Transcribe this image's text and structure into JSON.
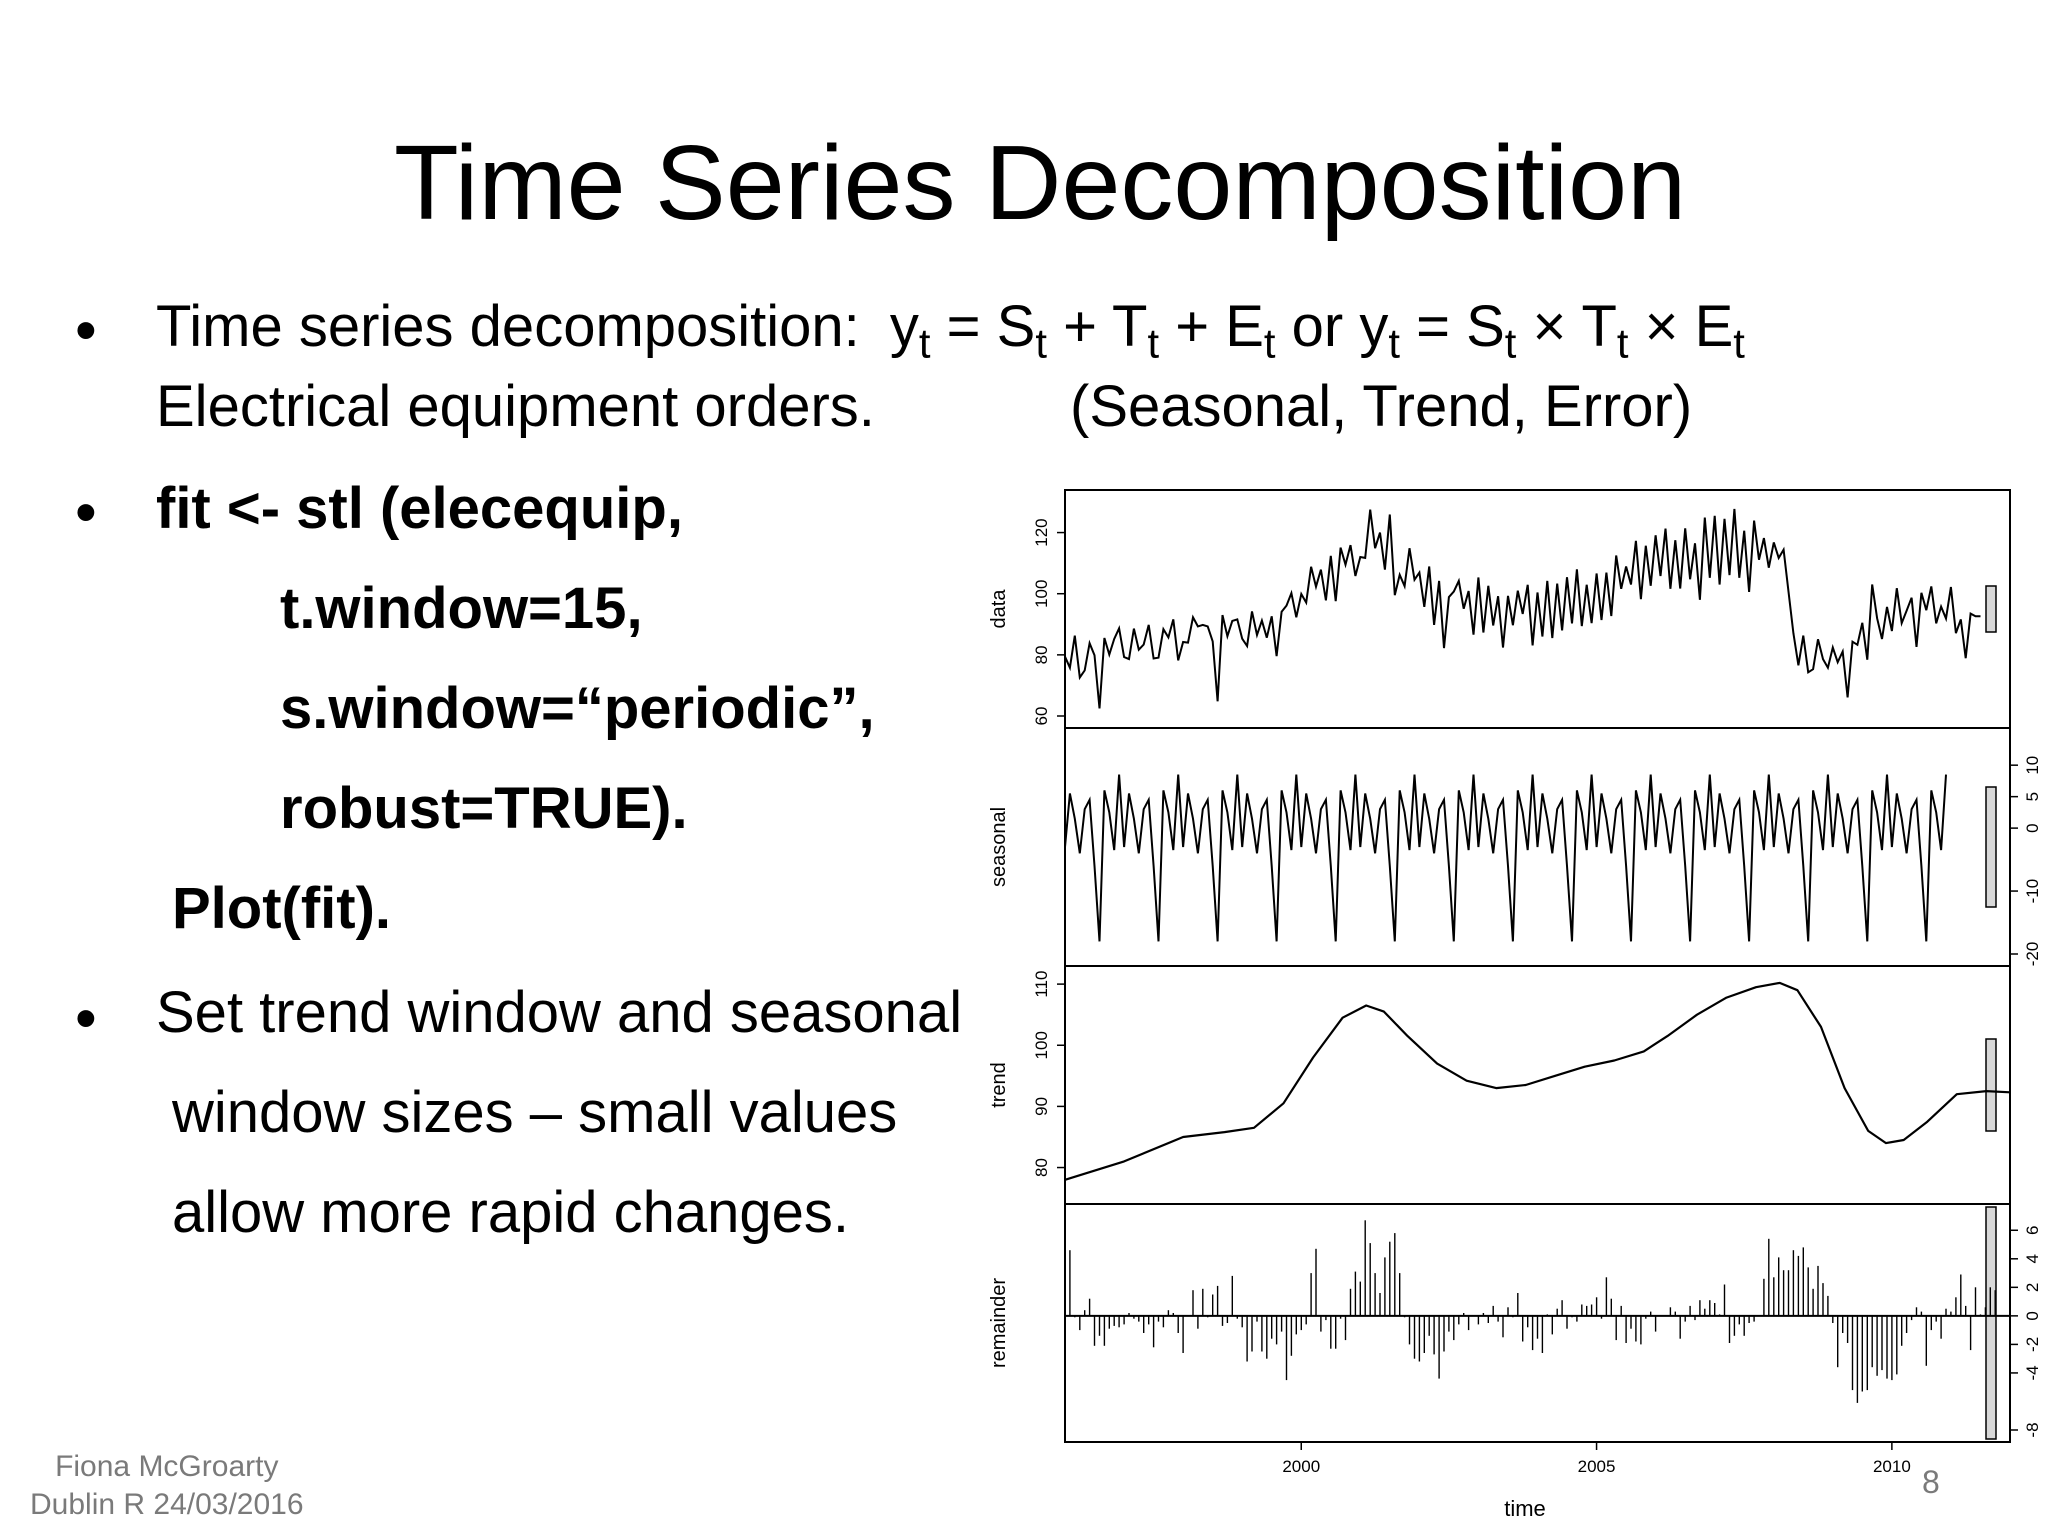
{
  "slide": {
    "title": "Time Series Decomposition",
    "bullet_symbol": "•",
    "b1_text": "Time series decomposition:",
    "b1_formula": {
      "y": "y",
      "t": "t",
      "S": "S",
      "T": "T",
      "E": "E",
      "eq": "=",
      "plus": "+",
      "or": "or",
      "times": "×"
    },
    "b1_line2_left": "Electrical equipment orders.",
    "b1_line2_right": "(Seasonal, Trend, Error)",
    "code": [
      "fit <- stl (elecequip,",
      "t.window=15,",
      "s.window=“periodic”,",
      "robust=TRUE)."
    ],
    "plot_call": "Plot(fit).",
    "b3_lines": [
      "Set trend window and seasonal",
      "window sizes – small values",
      "allow more rapid changes."
    ],
    "footer_author": "Fiona McGroarty",
    "footer_event": "Dublin R 24/03/2016",
    "page_number": "8"
  },
  "chart_data": {
    "type": "line",
    "title": "",
    "xlabel": "time",
    "x_ticks": [
      2000,
      2005,
      2010
    ],
    "x_range": [
      1996,
      2012
    ],
    "panels": [
      {
        "ylabel": "data",
        "type": "line",
        "axis_side": "left",
        "ylim": [
          60,
          130
        ],
        "ticks": [
          60,
          80,
          100,
          120
        ],
        "values": [
          79.4,
          75.8,
          86.3,
          72.6,
          74.9,
          83.8,
          79.9,
          62.5,
          85.5,
          80.1,
          85.2,
          88.7,
          79.3,
          78.6,
          88.6,
          81.7,
          83.4,
          89.8,
          78.8,
          79.1,
          88.4,
          85.7,
          91.6,
          78.2,
          84.2,
          84.0,
          92.3,
          89.3,
          89.8,
          89.3,
          84.4,
          64.8,
          93.0,
          86.1,
          91.1,
          91.6,
          85.3,
          82.9,
          94.2,
          86.5,
          91.2,
          85.6,
          92.6,
          79.6,
          94.1,
          96.1,
          100.2,
          92.3,
          99.9,
          97.1,
          108.8,
          102.3,
          107.9,
          97.8,
          112.4,
          97.6,
          115.1,
          109.5,
          115.9,
          105.8,
          112.0,
          111.7,
          127.5,
          114.9,
          120.0,
          107.9,
          125.9,
          99.5,
          106.2,
          102.5,
          114.9,
          104.6,
          106.9,
          95.7,
          108.9,
          89.8,
          104.2,
          82.2,
          98.9,
          100.7,
          104.2,
          95.1,
          100.9,
          86.6,
          105.3,
          87.3,
          102.6,
          89.6,
          99.2,
          82.4,
          99.3,
          89.7,
          101.0,
          93.4,
          102.9,
          83.1,
          100.4,
          86.0,
          104.2,
          85.5,
          103.3,
          88.0,
          105.4,
          90.3,
          108.0,
          89.4,
          102.9,
          90.4,
          106.6,
          91.4,
          106.9,
          92.7,
          112.5,
          101.6,
          108.9,
          103.0,
          117.3,
          98.2,
          115.7,
          102.6,
          119.1,
          105.8,
          121.3,
          101.6,
          117.5,
          101.7,
          121.4,
          104.7,
          116.5,
          98.0,
          124.9,
          105.2,
          125.5,
          103.0,
          124.5,
          106.1,
          127.7,
          105.2,
          120.6,
          100.6,
          123.9,
          111.1,
          118.2,
          108.5,
          116.8,
          111.7,
          114.4,
          100.7,
          87.1,
          76.6,
          86.3,
          74.3,
          75.3,
          85.1,
          78.6,
          75.8,
          82.4,
          77.6,
          81.1,
          66.1,
          84.3,
          83.3,
          90.5,
          78.4,
          103.0,
          92.0,
          85.2,
          95.7,
          87.8,
          101.8,
          90.4,
          94.4,
          98.7,
          82.6,
          100.3,
          94.6,
          102.4,
          90.3,
          95.8,
          91.9,
          102.2,
          87.1,
          91.6,
          78.9,
          93.5,
          92.6,
          92.6
        ]
      },
      {
        "ylabel": "seasonal",
        "type": "line",
        "axis_side": "right",
        "ylim": [
          -20,
          14
        ],
        "ticks": [
          -20,
          -10,
          0,
          5,
          10
        ],
        "pattern": [
          -3.0,
          5.5,
          1.5,
          -4.0,
          3.0,
          4.5,
          -6.0,
          -18.0,
          6.0,
          2.5,
          -3.5,
          8.5
        ],
        "series_length": 180
      },
      {
        "ylabel": "trend",
        "type": "line",
        "axis_side": "left",
        "ylim": [
          76,
          111
        ],
        "ticks": [
          80,
          90,
          100,
          110
        ],
        "knots": [
          [
            1996.0,
            78.0
          ],
          [
            1997.0,
            81.0
          ],
          [
            1998.0,
            85.0
          ],
          [
            1998.7,
            85.8
          ],
          [
            1999.2,
            86.5
          ],
          [
            1999.7,
            90.5
          ],
          [
            2000.2,
            98.0
          ],
          [
            2000.7,
            104.5
          ],
          [
            2001.1,
            106.5
          ],
          [
            2001.4,
            105.5
          ],
          [
            2001.8,
            101.5
          ],
          [
            2002.3,
            97.0
          ],
          [
            2002.8,
            94.2
          ],
          [
            2003.3,
            93.0
          ],
          [
            2003.8,
            93.5
          ],
          [
            2004.3,
            95.0
          ],
          [
            2004.8,
            96.5
          ],
          [
            2005.3,
            97.5
          ],
          [
            2005.8,
            99.0
          ],
          [
            2006.2,
            101.5
          ],
          [
            2006.7,
            105.0
          ],
          [
            2007.2,
            107.8
          ],
          [
            2007.7,
            109.5
          ],
          [
            2008.1,
            110.2
          ],
          [
            2008.4,
            109.0
          ],
          [
            2008.8,
            103.0
          ],
          [
            2009.2,
            93.0
          ],
          [
            2009.6,
            86.0
          ],
          [
            2009.9,
            84.0
          ],
          [
            2010.2,
            84.5
          ],
          [
            2010.6,
            87.5
          ],
          [
            2011.1,
            92.0
          ],
          [
            2011.6,
            92.5
          ],
          [
            2012.0,
            92.3
          ]
        ]
      },
      {
        "ylabel": "remainder",
        "type": "bar",
        "axis_side": "right",
        "ylim": [
          -8,
          7
        ],
        "ticks": [
          -8,
          -4,
          -2,
          0,
          2,
          4,
          6
        ],
        "values": [
          0.0,
          4.6,
          -0.1,
          -1.0,
          0.4,
          1.2,
          -2.1,
          -1.4,
          -2.1,
          -0.9,
          -0.7,
          -0.8,
          -0.6,
          0.2,
          -0.2,
          -0.4,
          -1.2,
          -0.6,
          -2.2,
          -0.4,
          -0.8,
          0.4,
          0.2,
          -1.2,
          -2.6,
          0.0,
          1.8,
          -0.9,
          1.9,
          -0.1,
          1.5,
          2.1,
          -0.7,
          -0.5,
          2.8,
          -0.2,
          -0.8,
          -3.2,
          -2.5,
          -0.4,
          -2.5,
          -3.0,
          -1.6,
          -2.0,
          -1.1,
          -4.5,
          -2.8,
          -1.3,
          -1.0,
          -0.6,
          3.0,
          4.7,
          -1.1,
          -0.3,
          -2.3,
          -2.3,
          -0.2,
          -1.7,
          1.9,
          3.1,
          2.4,
          6.7,
          5.1,
          3.0,
          1.6,
          4.1,
          5.2,
          5.8,
          3.0,
          -0.1,
          -2.0,
          -3.0,
          -3.2,
          -2.6,
          -1.4,
          -2.7,
          -4.4,
          -2.5,
          -1.1,
          -1.7,
          -0.6,
          0.2,
          -1.0,
          0.0,
          -0.6,
          0.2,
          -0.5,
          0.7,
          -0.4,
          -1.5,
          0.6,
          -0.1,
          1.6,
          -1.8,
          -0.8,
          -2.4,
          -1.6,
          -2.6,
          0.1,
          -1.3,
          0.5,
          1.1,
          -0.9,
          -0.1,
          -0.4,
          0.8,
          0.7,
          0.8,
          1.3,
          -0.2,
          2.7,
          1.2,
          -1.7,
          0.7,
          -1.9,
          -0.9,
          -1.8,
          -2.0,
          -0.2,
          0.3,
          -1.1,
          0.0,
          0.0,
          0.6,
          0.3,
          -1.6,
          -0.4,
          0.7,
          -0.3,
          1.1,
          0.5,
          1.1,
          0.9,
          0.1,
          2.2,
          -1.9,
          -1.4,
          -0.6,
          -1.4,
          -0.5,
          -0.4,
          0.0,
          2.6,
          5.4,
          2.7,
          4.1,
          3.2,
          3.2,
          4.6,
          4.2,
          4.8,
          3.4,
          1.9,
          3.5,
          2.3,
          1.4,
          -0.5,
          -3.6,
          -1.2,
          -1.9,
          -5.2,
          -6.1,
          -5.3,
          -5.2,
          -3.6,
          -4.2,
          -3.8,
          -4.4,
          -4.5,
          -4.1,
          -2.1,
          -1.2,
          -0.3,
          0.6,
          0.3,
          -3.5,
          -1.0,
          -0.4,
          -1.6,
          0.5,
          0.3,
          1.3,
          2.9,
          0.7,
          -2.4,
          2.0,
          0.1,
          0.6,
          2.0,
          1.8
        ]
      }
    ]
  }
}
